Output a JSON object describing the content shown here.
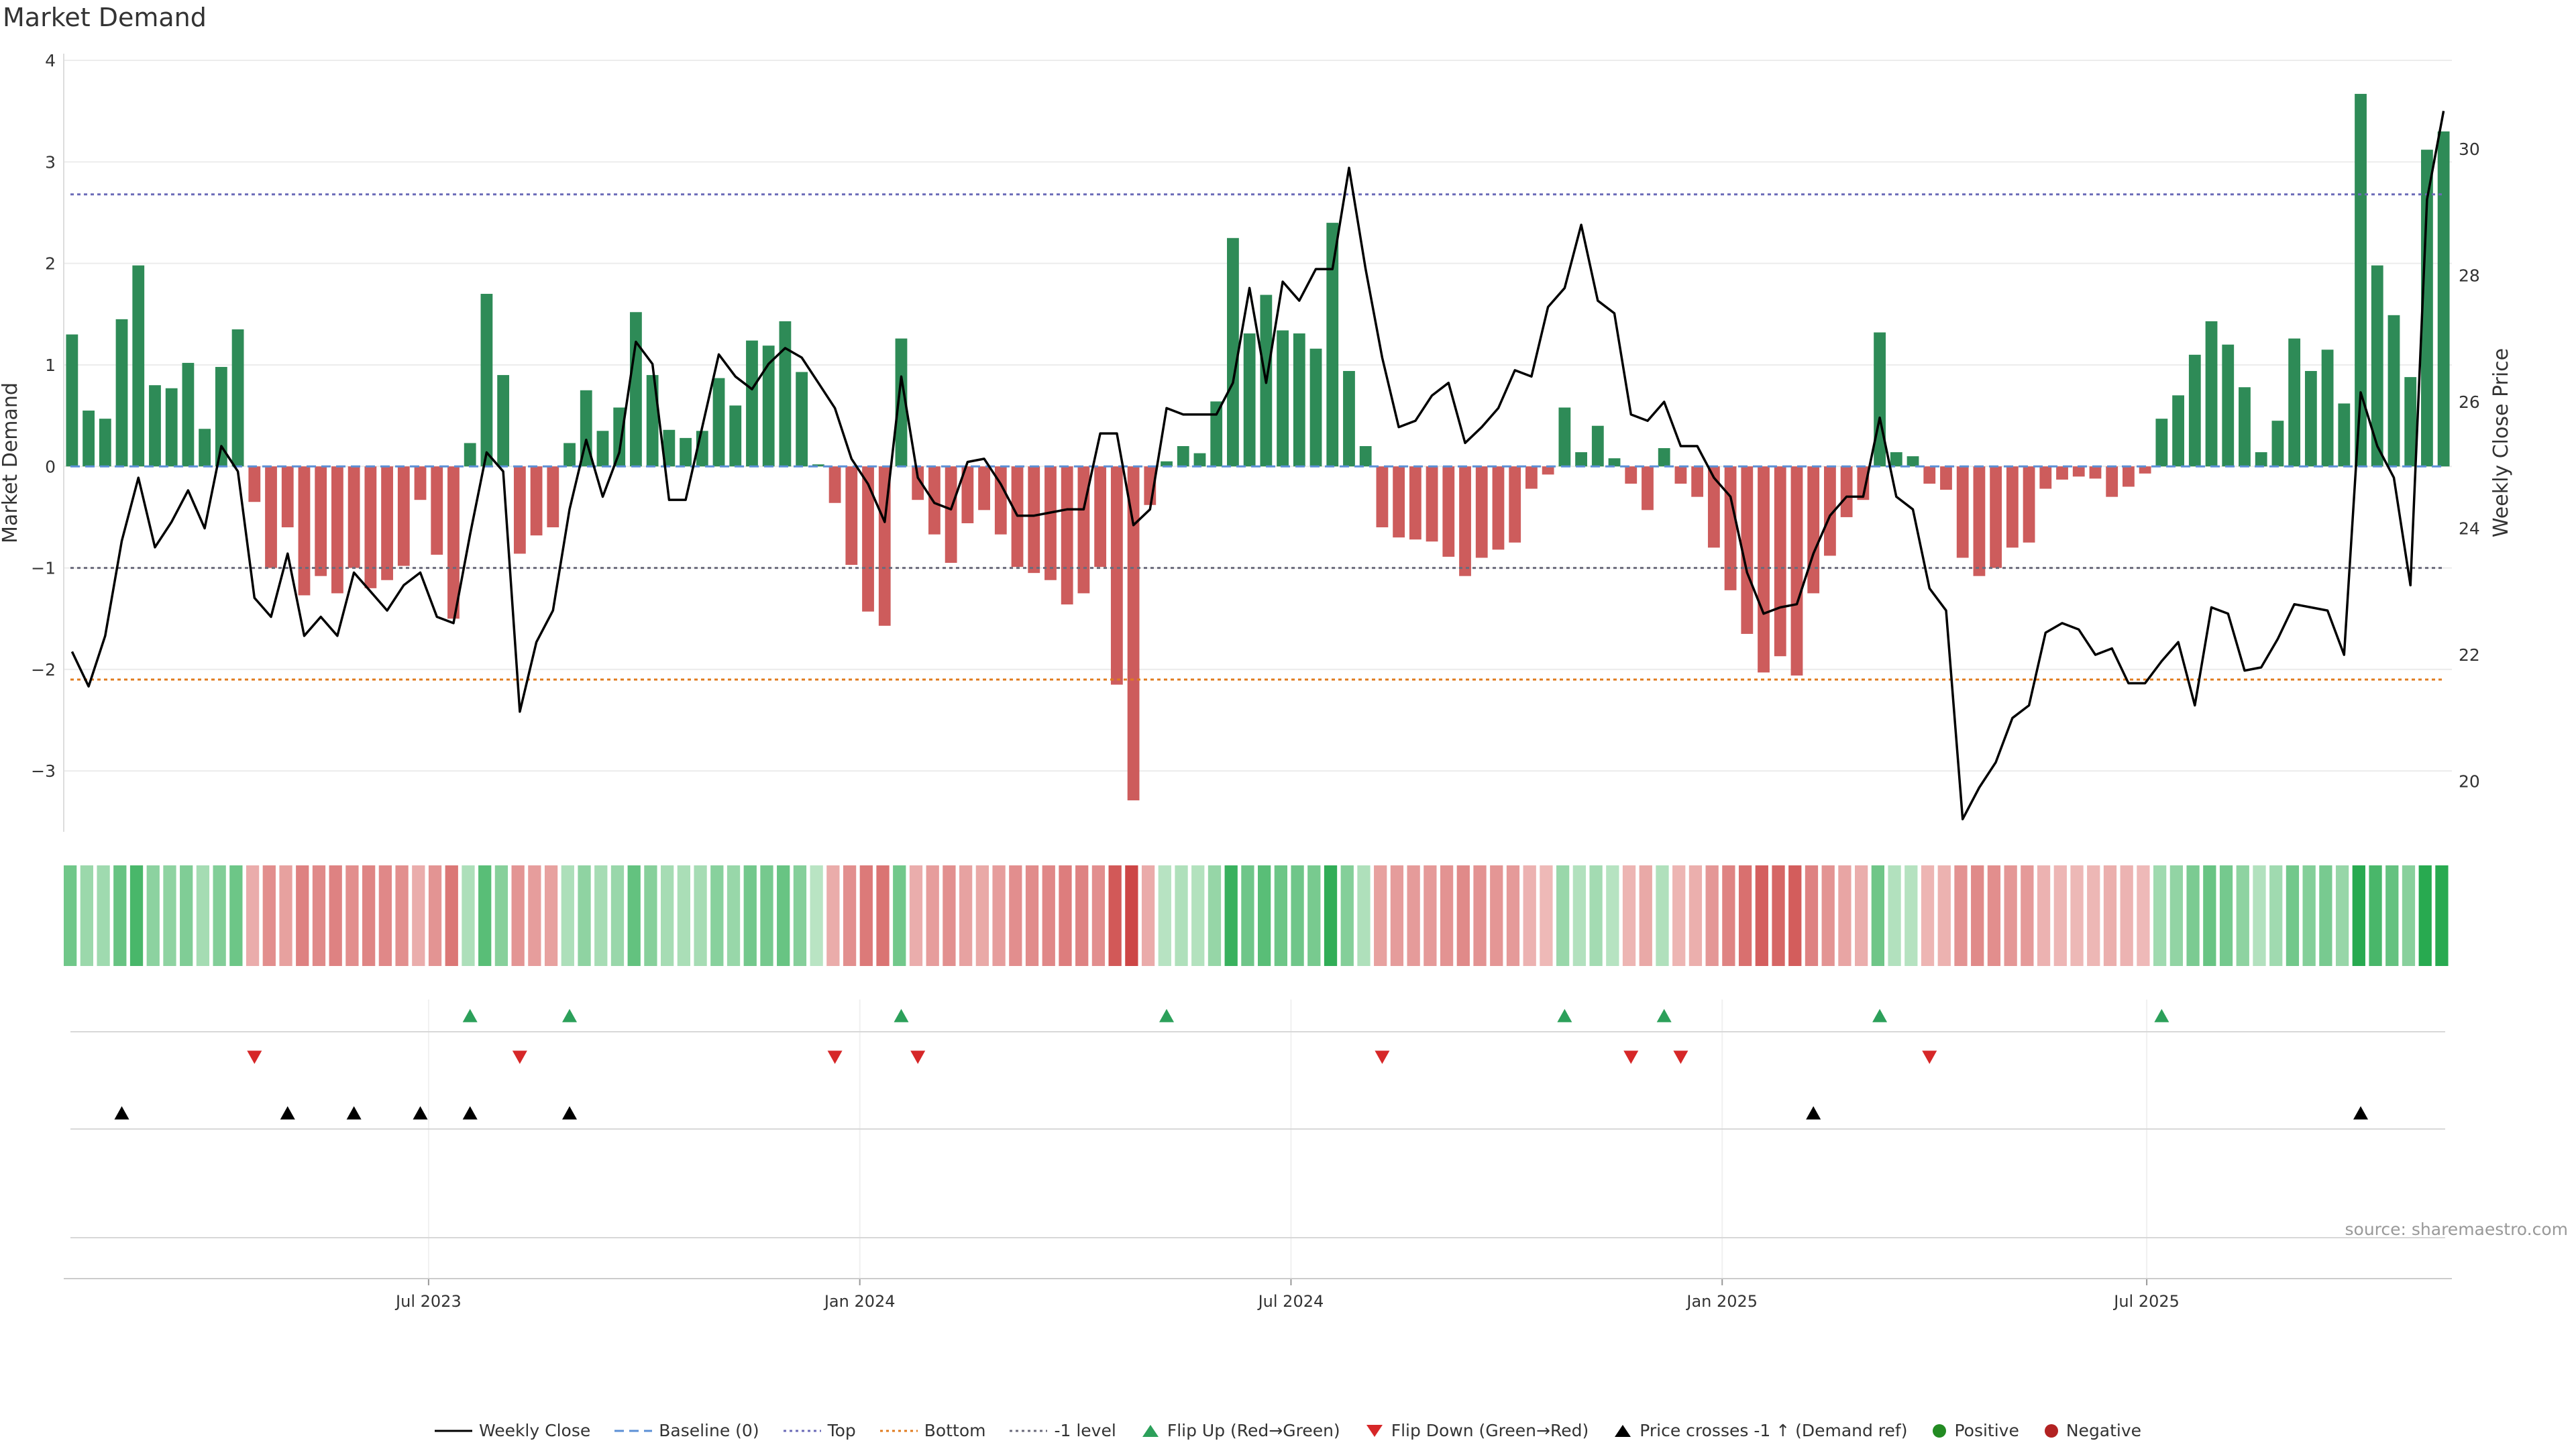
{
  "title": "Market Demand",
  "source": "source: sharemaestro.com",
  "colors": {
    "green": "#2e8b57",
    "red": "#cd5c5c",
    "price": "#000000",
    "top": "#6b6bb8",
    "bottom": "#e07b1f",
    "minus1": "#6b6b7b",
    "baseline": "#5b8fd6"
  },
  "chart_data": {
    "type": "bar",
    "title": "Market Demand",
    "ylabel_left": "Market Demand",
    "ylabel_right": "Weekly Close Price",
    "ylim_left": [
      -3.6,
      4.0
    ],
    "yticks_left": [
      4,
      3,
      2,
      1,
      0,
      -1,
      -2,
      -3
    ],
    "ytick_labels_left": [
      "4",
      "3",
      "2",
      "1",
      "0",
      "−1",
      "−2",
      "−3"
    ],
    "ylim_right": [
      19.2,
      31.4
    ],
    "yticks_right": [
      30,
      28,
      26,
      24,
      22,
      20
    ],
    "x_tick_labels": [
      "Jul 2023",
      "Jan 2024",
      "Jul 2024",
      "Jan 2025",
      "Jul 2025"
    ],
    "x_tick_positions": [
      22,
      48,
      74,
      100,
      125.6
    ],
    "levels": {
      "top": 2.68,
      "bottom": -2.1,
      "minus1": -1.0,
      "baseline": 0
    },
    "demand": [
      1.3,
      0.55,
      0.47,
      1.45,
      1.98,
      0.8,
      0.77,
      1.02,
      0.37,
      0.98,
      1.35,
      -0.35,
      -1.0,
      -0.6,
      -1.27,
      -1.08,
      -1.25,
      -1.0,
      -1.2,
      -1.12,
      -0.98,
      -0.33,
      -0.87,
      -1.5,
      0.23,
      1.7,
      0.9,
      -0.86,
      -0.68,
      -0.6,
      0.23,
      0.75,
      0.35,
      0.58,
      1.52,
      0.9,
      0.36,
      0.28,
      0.35,
      0.87,
      0.6,
      1.24,
      1.19,
      1.43,
      0.93,
      0.02,
      -0.36,
      -0.97,
      -1.43,
      -1.57,
      1.26,
      -0.33,
      -0.67,
      -0.95,
      -0.56,
      -0.43,
      -0.67,
      -0.99,
      -1.05,
      -1.12,
      -1.36,
      -1.25,
      -0.99,
      -2.15,
      -3.29,
      -0.38,
      0.05,
      0.2,
      0.13,
      0.64,
      2.25,
      1.31,
      1.69,
      1.34,
      1.31,
      1.16,
      2.4,
      0.94,
      0.2,
      -0.6,
      -0.7,
      -0.72,
      -0.74,
      -0.89,
      -1.08,
      -0.9,
      -0.82,
      -0.75,
      -0.22,
      -0.08,
      0.58,
      0.14,
      0.4,
      0.08,
      -0.17,
      -0.43,
      0.18,
      -0.17,
      -0.3,
      -0.8,
      -1.22,
      -1.65,
      -2.03,
      -1.87,
      -2.06,
      -1.25,
      -0.88,
      -0.5,
      -0.33,
      1.32,
      0.14,
      0.1,
      -0.17,
      -0.23,
      -0.9,
      -1.08,
      -1.0,
      -0.8,
      -0.75,
      -0.22,
      -0.13,
      -0.1,
      -0.12,
      -0.3,
      -0.2,
      -0.07,
      0.47,
      0.7,
      1.1,
      1.43,
      1.2,
      0.78,
      0.14,
      0.45,
      1.26,
      0.94,
      1.15,
      0.62,
      3.67,
      1.98,
      1.49,
      0.88,
      3.12,
      3.3
    ],
    "weekly_close": [
      22.05,
      21.5,
      22.3,
      23.8,
      24.8,
      23.7,
      24.1,
      24.6,
      24.0,
      25.3,
      24.9,
      22.9,
      22.6,
      23.6,
      22.3,
      22.6,
      22.3,
      23.3,
      23.0,
      22.7,
      23.1,
      23.3,
      22.6,
      22.5,
      23.9,
      25.2,
      24.9,
      21.1,
      22.2,
      22.7,
      24.3,
      25.4,
      24.5,
      25.2,
      26.95,
      26.6,
      24.45,
      24.45,
      25.6,
      26.75,
      26.4,
      26.2,
      26.6,
      26.85,
      26.7,
      26.3,
      25.9,
      25.1,
      24.7,
      24.1,
      26.4,
      24.8,
      24.4,
      24.3,
      25.05,
      25.1,
      24.7,
      24.2,
      24.2,
      24.25,
      24.3,
      24.3,
      25.5,
      25.5,
      24.05,
      24.3,
      25.9,
      25.8,
      25.8,
      25.8,
      26.3,
      27.8,
      26.3,
      27.9,
      27.6,
      28.1,
      28.1,
      29.7,
      28.1,
      26.7,
      25.6,
      25.7,
      26.1,
      26.3,
      25.35,
      25.6,
      25.9,
      26.5,
      26.4,
      27.5,
      27.8,
      28.8,
      27.6,
      27.4,
      25.8,
      25.7,
      26.0,
      25.3,
      25.3,
      24.8,
      24.5,
      23.3,
      22.65,
      22.75,
      22.8,
      23.6,
      24.2,
      24.5,
      24.5,
      25.75,
      24.5,
      24.3,
      23.05,
      22.7,
      19.4,
      19.9,
      20.3,
      21.0,
      21.2,
      22.35,
      22.5,
      22.4,
      22.0,
      22.1,
      21.55,
      21.55,
      21.9,
      22.2,
      21.2,
      22.75,
      22.65,
      21.75,
      21.8,
      22.25,
      22.8,
      22.75,
      22.7,
      22.0,
      26.15,
      25.3,
      24.8,
      23.1,
      29.2,
      30.6
    ],
    "flip_up_index": [
      24,
      30,
      50,
      66,
      90,
      96,
      109,
      126
    ],
    "flip_down_index": [
      11,
      27,
      46,
      51,
      79,
      94,
      97,
      112
    ],
    "price_cross_index": [
      3,
      13,
      17,
      21,
      24,
      30,
      105,
      138
    ],
    "legend": [
      "Weekly Close",
      "Baseline (0)",
      "Top",
      "Bottom",
      "-1 level",
      "Flip Up (Red→Green)",
      "Flip Down (Green→Red)",
      "Price crosses -1 ↑ (Demand ref)",
      "Positive",
      "Negative"
    ]
  }
}
